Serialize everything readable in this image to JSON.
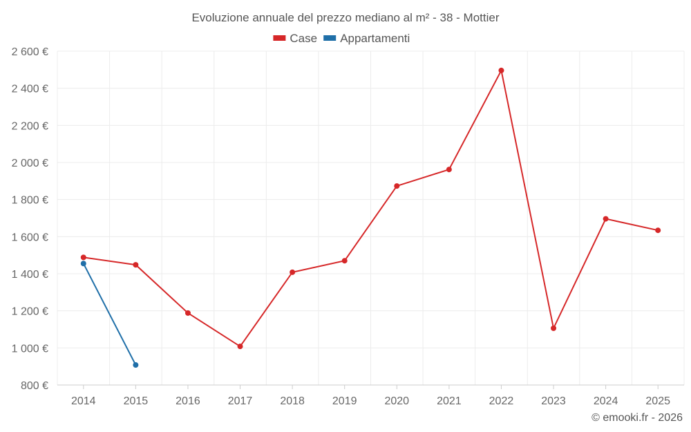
{
  "chart_data": {
    "type": "line",
    "title": "Evoluzione annuale del prezzo mediano al m² - 38 - Mottier",
    "categories": [
      "2014",
      "2015",
      "2016",
      "2017",
      "2018",
      "2019",
      "2020",
      "2021",
      "2022",
      "2023",
      "2024",
      "2025"
    ],
    "series": [
      {
        "name": "Case",
        "color": "#d62728",
        "values": [
          1488,
          1448,
          1188,
          1008,
          1408,
          1470,
          1873,
          1962,
          2496,
          1106,
          1696,
          1634
        ]
      },
      {
        "name": "Appartamenti",
        "color": "#1f6fa8",
        "values": [
          1455,
          908,
          null,
          null,
          null,
          null,
          null,
          null,
          null,
          null,
          null,
          null
        ]
      }
    ],
    "ylim": [
      800,
      2600
    ],
    "yticks": [
      800,
      1000,
      1200,
      1400,
      1600,
      1800,
      2000,
      2200,
      2400,
      2600
    ],
    "ytick_labels": [
      "800 €",
      "1 000 €",
      "1 200 €",
      "1 400 €",
      "1 600 €",
      "1 800 €",
      "2 000 €",
      "2 200 €",
      "2 400 €",
      "2 600 €"
    ],
    "xlabel": "",
    "ylabel": "",
    "grid": true,
    "legend_position": "top-center"
  },
  "credit": "© emooki.fr - 2026"
}
